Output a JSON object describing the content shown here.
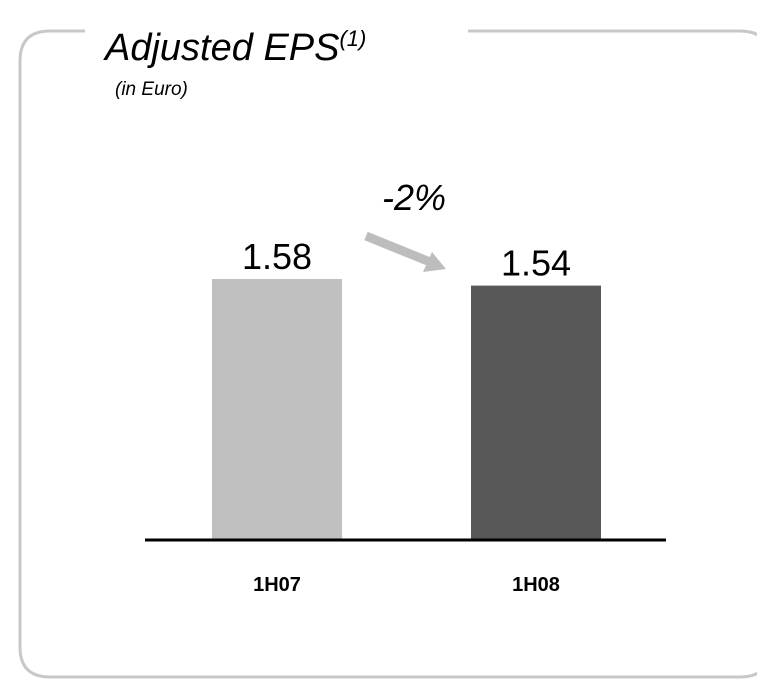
{
  "chart_data": {
    "type": "bar",
    "title": "Adjusted EPS",
    "title_note": "(1)",
    "subtitle": "(in Euro)",
    "annotation": "-2%",
    "categories": [
      "1H07",
      "1H08"
    ],
    "values": [
      1.58,
      1.54
    ],
    "colors": [
      "#c0c0c0",
      "#585858"
    ]
  }
}
